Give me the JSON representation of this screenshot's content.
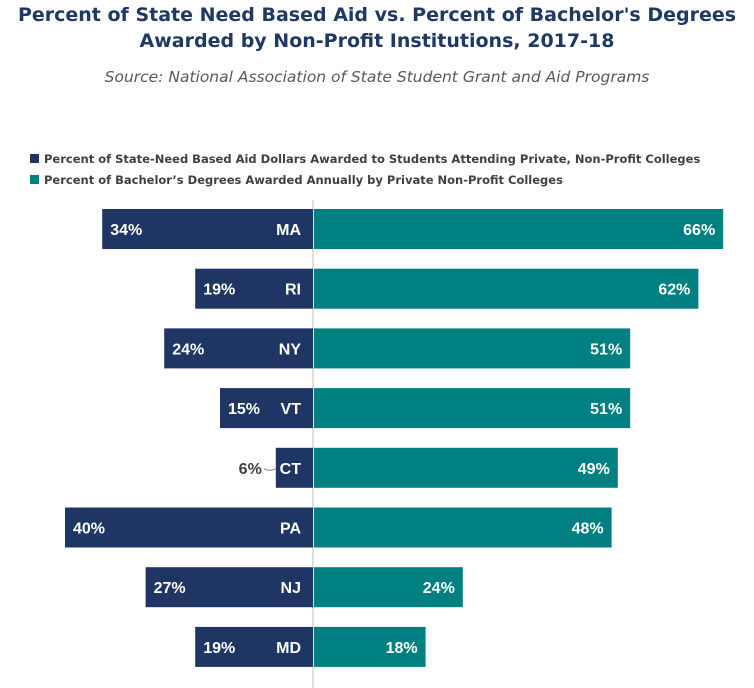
{
  "title_line1": "Percent of State Need Based Aid vs. Percent of Bachelor's Degrees",
  "title_line2": "Awarded by Non-Profit Institutions, 2017-18",
  "subtitle": "Source: National Association of State Student Grant and Aid Programs",
  "colors": {
    "left": "#1f3564",
    "right": "#008080",
    "axis": "#bfbfbf",
    "label": "#ffffff",
    "outside_label": "#404040"
  },
  "chart_data": {
    "type": "bar",
    "orientation": "horizontal-diverging",
    "categories": [
      "MA",
      "RI",
      "NY",
      "VT",
      "CT",
      "PA",
      "NJ",
      "MD"
    ],
    "series": [
      {
        "name": "Percent of State-Need Based Aid Dollars Awarded to Students Attending Private, Non-Profit Colleges",
        "values": [
          34,
          19,
          24,
          15,
          6,
          40,
          27,
          19
        ],
        "labels": [
          "34%",
          "19%",
          "24%",
          "15%",
          "6%",
          "40%",
          "27%",
          "19%"
        ],
        "direction": "left"
      },
      {
        "name": "Percent of Bachelor’s Degrees Awarded Annually by Private Non-Profit  Colleges",
        "values": [
          66,
          62,
          51,
          51,
          49,
          48,
          24,
          18
        ],
        "labels": [
          "66%",
          "62%",
          "51%",
          "51%",
          "49%",
          "48%",
          "24%",
          "18%"
        ],
        "direction": "right"
      }
    ],
    "legend_position": "top-left",
    "grid": false
  }
}
